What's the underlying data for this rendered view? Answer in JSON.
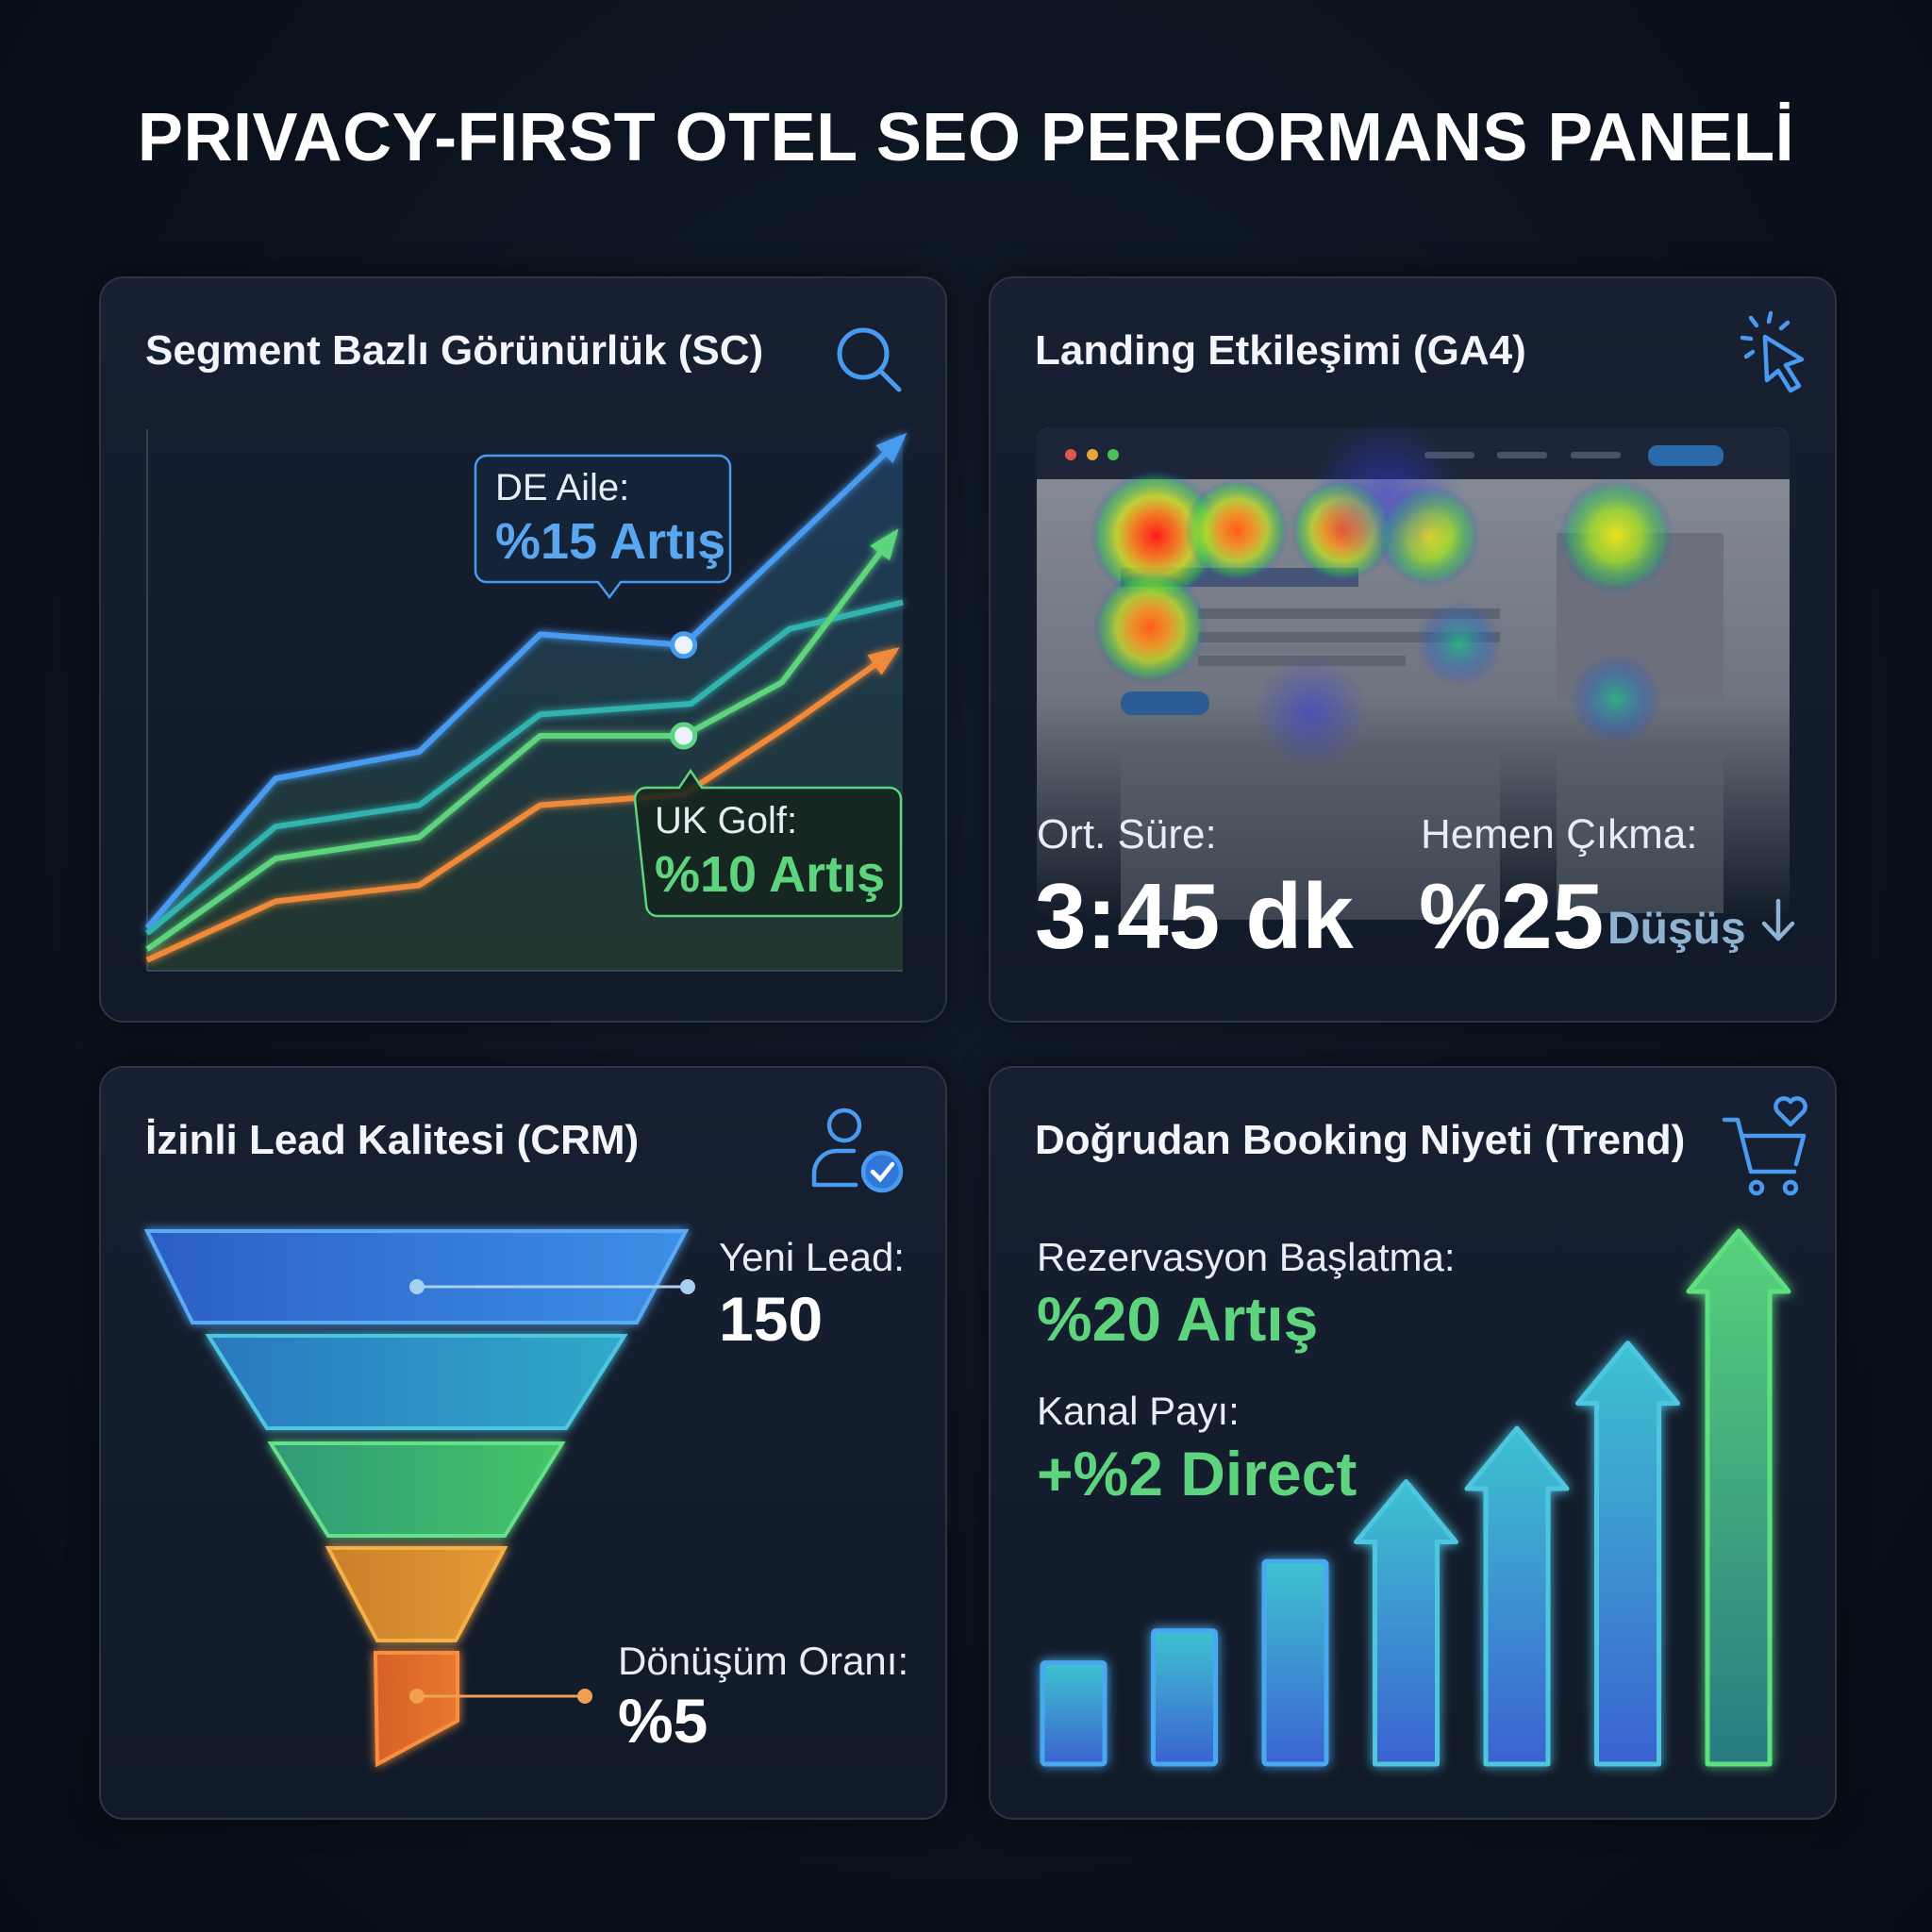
{
  "title": "PRIVACY-FIRST OTEL SEO PERFORMANS PANELİ",
  "colors": {
    "background": "#0a111c",
    "card": "#131c2a",
    "blue": "#4a9bf0",
    "teal": "#33b3b0",
    "green": "#5fd47e",
    "orange": "#f08a3a",
    "muted_blue": "#8fb3d0"
  },
  "panels": {
    "visibility": {
      "title": "Segment Bazlı Görünürlük (SC)",
      "icon": "search-icon",
      "callouts": [
        {
          "label": "DE Aile:",
          "value": "%15 Artış"
        },
        {
          "label": "UK Golf:",
          "value": "%10 Artış"
        }
      ]
    },
    "landing": {
      "title": "Landing Etkileşimi (GA4)",
      "icon": "cursor-click-icon",
      "avg_time_label": "Ort. Süre:",
      "avg_time_value": "3:45 dk",
      "bounce_label": "Hemen Çıkma:",
      "bounce_value": "%25",
      "bounce_change": "Düşüş",
      "bounce_direction": "down"
    },
    "leads": {
      "title": "İzinli Lead Kalitesi (CRM)",
      "icon": "user-check-icon",
      "new_lead_label": "Yeni Lead:",
      "new_lead_value": "150",
      "conversion_label": "Dönüşüm Oranı:",
      "conversion_value": "%5",
      "funnel_stages": 5
    },
    "booking": {
      "title": "Doğrudan Booking Niyeti (Trend)",
      "icon": "cart-heart-icon",
      "start_label": "Rezervasyon Başlatma:",
      "start_value": "%20 Artış",
      "share_label": "Kanal Payı:",
      "share_value": "+%2 Direct"
    }
  },
  "chart_data": [
    {
      "type": "line",
      "title": "Segment Bazlı Görünürlük (SC)",
      "xlabel": "",
      "ylabel": "",
      "xlim": [
        0,
        100
      ],
      "ylim": [
        0,
        100
      ],
      "grid": false,
      "series": [
        {
          "name": "DE Aile",
          "color": "#4a9bf0",
          "arrow": true,
          "x": [
            0,
            17,
            36,
            52,
            71,
            100
          ],
          "values": [
            8,
            36,
            41,
            63,
            61,
            100
          ],
          "highlight_index": 4
        },
        {
          "color": "#33b3b0",
          "arrow": false,
          "x": [
            0,
            17,
            36,
            52,
            72,
            85,
            100
          ],
          "values": [
            7,
            27,
            31,
            48,
            50,
            64,
            69
          ]
        },
        {
          "name": "UK Golf",
          "color": "#5fd47e",
          "arrow": true,
          "x": [
            0,
            17,
            36,
            52,
            71,
            84,
            99
          ],
          "values": [
            4,
            21,
            25,
            44,
            44,
            54,
            82
          ],
          "highlight_index": 4
        },
        {
          "color": "#f08a3a",
          "arrow": true,
          "x": [
            0,
            17,
            36,
            52,
            71,
            85,
            99
          ],
          "values": [
            2,
            13,
            16,
            31,
            33,
            46,
            60
          ]
        }
      ]
    },
    {
      "type": "bar",
      "title": "Doğrudan Booking Niyeti (Trend)",
      "xlabel": "",
      "ylabel": "",
      "ylim": [
        0,
        100
      ],
      "categories": [
        "1",
        "2",
        "3",
        "4",
        "5",
        "6",
        "7"
      ],
      "values": [
        19,
        25,
        38,
        53,
        63,
        79,
        100
      ],
      "arrows": [
        false,
        false,
        false,
        true,
        true,
        true,
        true
      ]
    }
  ]
}
